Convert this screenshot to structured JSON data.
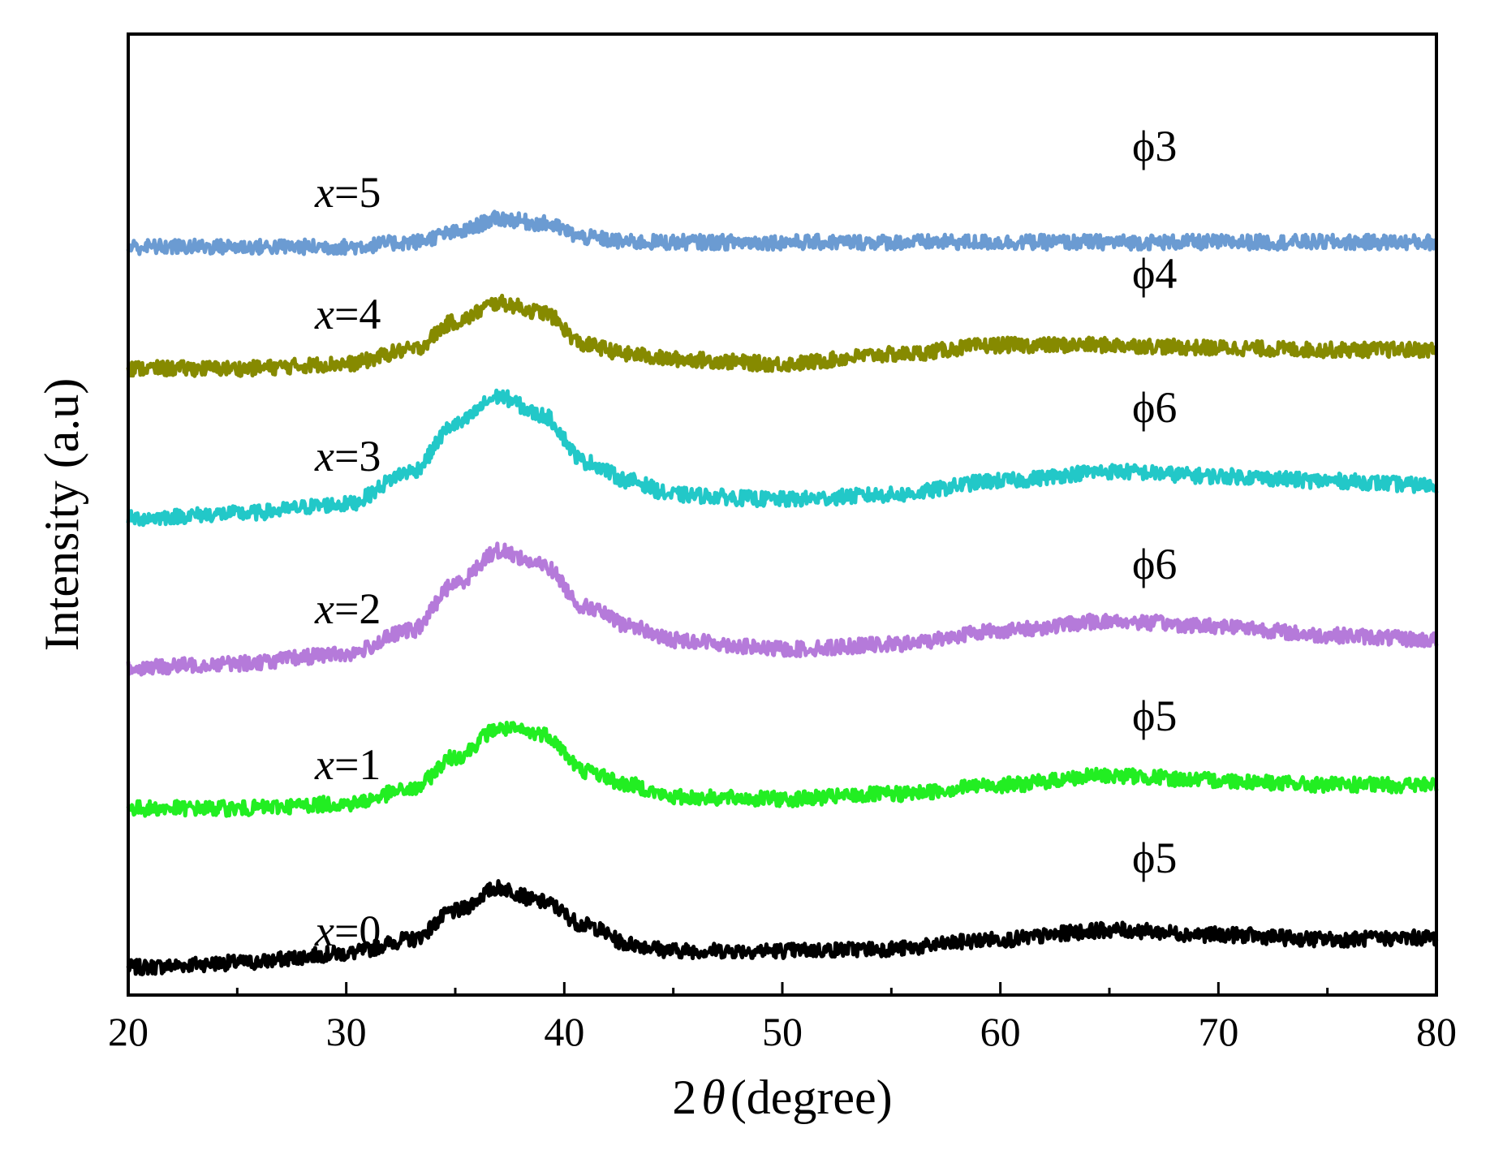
{
  "chart_data": {
    "type": "line",
    "xlabel": "2θ (degree)",
    "xlabel_prefix": "2",
    "xlabel_symbol": "θ",
    "xlabel_suffix": "(degree)",
    "ylabel": "Intensity (a.u)",
    "xlim": [
      20,
      80
    ],
    "xticks": [
      20,
      30,
      40,
      50,
      60,
      70,
      80
    ],
    "xtick_labels": [
      "20",
      "30",
      "40",
      "50",
      "60",
      "70",
      "80"
    ],
    "yticks_shown": false,
    "grid": false,
    "series": [
      {
        "name": "x=0",
        "label_var": "x",
        "label_val": "=0",
        "annotation": "ϕ5",
        "color": "#000000",
        "offset": 0,
        "x": [
          20,
          25,
          30,
          33,
          35,
          37,
          39,
          41,
          43,
          45,
          50,
          55,
          60,
          65,
          70,
          75,
          80
        ],
        "y": [
          0,
          5,
          15,
          30,
          60,
          85,
          70,
          45,
          25,
          18,
          18,
          20,
          30,
          40,
          35,
          30,
          32
        ]
      },
      {
        "name": "x=1",
        "label_var": "x",
        "label_val": "=1",
        "annotation": "ϕ5",
        "color": "#22ee22",
        "offset": 170,
        "x": [
          20,
          25,
          30,
          33,
          35,
          37,
          39,
          41,
          43,
          45,
          50,
          55,
          60,
          65,
          70,
          75,
          80
        ],
        "y": [
          0,
          0,
          5,
          20,
          55,
          85,
          80,
          40,
          25,
          12,
          10,
          15,
          25,
          35,
          30,
          25,
          25
        ]
      },
      {
        "name": "x=2",
        "label_var": "x",
        "label_val": "=2",
        "annotation": "ϕ6",
        "color": "#b57ada",
        "offset": 320,
        "x": [
          20,
          25,
          30,
          33,
          35,
          37,
          39,
          41,
          43,
          45,
          50,
          55,
          60,
          65,
          70,
          75,
          80
        ],
        "y": [
          0,
          5,
          15,
          40,
          90,
          125,
          110,
          65,
          45,
          30,
          20,
          25,
          40,
          50,
          45,
          35,
          30
        ]
      },
      {
        "name": "x=3",
        "label_var": "x",
        "label_val": "=3",
        "annotation": "ϕ6",
        "color": "#22c8c8",
        "offset": 480,
        "x": [
          20,
          25,
          30,
          33,
          35,
          37,
          39,
          41,
          43,
          45,
          50,
          55,
          60,
          65,
          70,
          75,
          80
        ],
        "y": [
          0,
          5,
          15,
          50,
          100,
          130,
          110,
          60,
          40,
          25,
          20,
          25,
          40,
          50,
          45,
          40,
          35
        ]
      },
      {
        "name": "x=4",
        "label_var": "x",
        "label_val": "=4",
        "annotation": "ϕ4",
        "color": "#868a00",
        "offset": 640,
        "x": [
          20,
          25,
          30,
          33,
          35,
          37,
          39,
          41,
          43,
          45,
          50,
          55,
          60,
          65,
          70,
          75,
          80
        ],
        "y": [
          0,
          0,
          5,
          20,
          50,
          70,
          60,
          25,
          15,
          10,
          5,
          15,
          25,
          25,
          22,
          20,
          20
        ]
      },
      {
        "name": "x=5",
        "label_var": "x",
        "label_val": "=5",
        "annotation": "ϕ3",
        "color": "#6b9bd2",
        "offset": 770,
        "x": [
          20,
          25,
          30,
          33,
          35,
          37,
          39,
          41,
          43,
          45,
          50,
          55,
          60,
          65,
          70,
          75,
          80
        ],
        "y": [
          0,
          0,
          0,
          5,
          15,
          30,
          25,
          10,
          5,
          5,
          5,
          5,
          5,
          5,
          5,
          5,
          5
        ]
      }
    ]
  }
}
